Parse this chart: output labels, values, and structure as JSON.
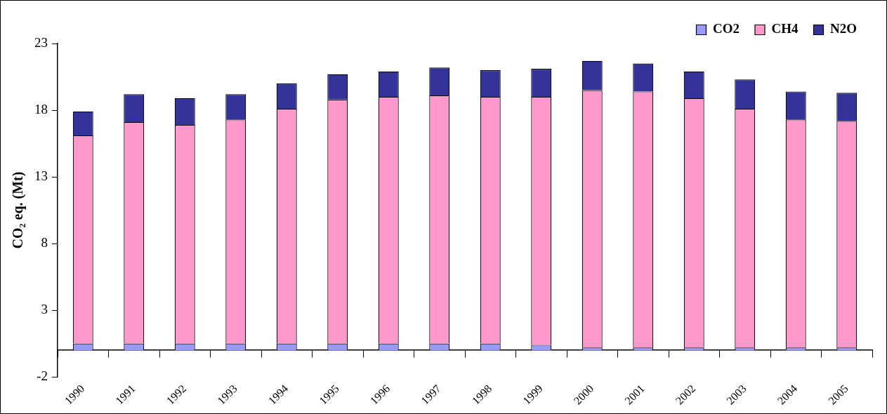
{
  "chart_data": {
    "type": "bar",
    "stacked": true,
    "ylabel": "CO₂ eq. (Mt)",
    "categories": [
      "1990",
      "1991",
      "1992",
      "1993",
      "1994",
      "1995",
      "1996",
      "1997",
      "1998",
      "1999",
      "2000",
      "2001",
      "2002",
      "2003",
      "2004",
      "2005"
    ],
    "series": [
      {
        "name": "CO2",
        "color": "#9999ff",
        "values": [
          0.5,
          0.5,
          0.5,
          0.5,
          0.5,
          0.5,
          0.5,
          0.5,
          0.5,
          0.4,
          0.2,
          0.2,
          0.2,
          0.2,
          0.2,
          0.2
        ]
      },
      {
        "name": "CH4",
        "color": "#ff99cc",
        "values": [
          15.6,
          16.6,
          16.4,
          16.8,
          17.6,
          18.3,
          18.5,
          18.6,
          18.5,
          18.6,
          19.3,
          19.2,
          18.7,
          17.9,
          17.1,
          17.0
        ]
      },
      {
        "name": "N2O",
        "color": "#333399",
        "values": [
          1.8,
          2.1,
          2.0,
          1.9,
          1.9,
          1.9,
          1.9,
          2.1,
          2.0,
          2.1,
          2.2,
          2.1,
          2.0,
          2.2,
          2.1,
          2.1
        ]
      }
    ],
    "ylim": [
      -2,
      23
    ],
    "yticks": [
      -2,
      3,
      8,
      13,
      18,
      23
    ],
    "grid": false,
    "legend": "top right"
  }
}
